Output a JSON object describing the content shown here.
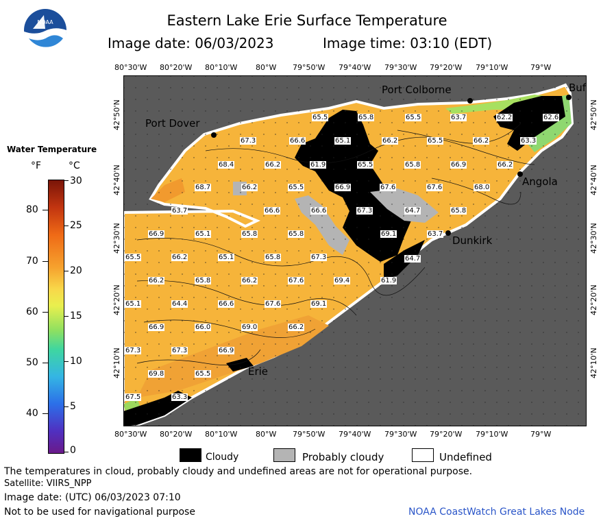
{
  "title": "Eastern Lake Erie Surface Temperature",
  "image_date_label": "Image date: 06/03/2023",
  "image_time_label": "Image time: 03:10 (EDT)",
  "logo_text": "NOAA",
  "legend": {
    "title": "Water Temperature",
    "unit_f": "°F",
    "unit_c": "°C",
    "f_ticks": [
      "80",
      "70",
      "60",
      "50",
      "40"
    ],
    "c_ticks": [
      "30",
      "25",
      "20",
      "15",
      "10",
      "5",
      "0"
    ]
  },
  "lon_labels": [
    "80°30'W",
    "80°20'W",
    "80°10'W",
    "80°W",
    "79°50'W",
    "79°40'W",
    "79°30'W",
    "79°20'W",
    "79°10'W",
    "79°W"
  ],
  "lat_labels": [
    "42°50'N",
    "42°40'N",
    "42°30'N",
    "42°20'N",
    "42°10'N"
  ],
  "cities": {
    "port_colborne": "Port Colborne",
    "buffalo": "Buf",
    "port_dover": "Port Dover",
    "angola": "Angola",
    "dunkirk": "Dunkirk",
    "erie": "Erie"
  },
  "temps": [
    "65.5",
    "65.8",
    "65.5",
    "63.7",
    "62.2",
    "62.6",
    "67.3",
    "66.6",
    "65.1",
    "66.2",
    "65.5",
    "66.2",
    "63.3",
    "68.4",
    "66.2",
    "61.9",
    "65.5",
    "65.8",
    "66.9",
    "66.2",
    "68.7",
    "66.2",
    "65.5",
    "66.9",
    "67.6",
    "67.6",
    "68.0",
    "63.7",
    "66.6",
    "66.6",
    "67.3",
    "64.7",
    "65.8",
    "66.9",
    "65.1",
    "65.8",
    "65.8",
    "69.1",
    "63.7",
    "65.5",
    "66.2",
    "65.1",
    "65.8",
    "67.3",
    "64.7",
    "66.2",
    "65.8",
    "66.2",
    "67.6",
    "69.4",
    "61.9",
    "65.1",
    "64.4",
    "66.6",
    "67.6",
    "69.1",
    "66.9",
    "66.0",
    "69.0",
    "66.2",
    "67.3",
    "67.3",
    "66.9",
    "69.8",
    "65.5",
    "67.5",
    "63.3"
  ],
  "legend_items": {
    "cloudy": "Cloudy",
    "probably_cloudy": "Probably cloudy",
    "undefined": "Undefined"
  },
  "footer": {
    "disclaimer": "The temperatures in cloud, probably cloudy and undefined areas are not for operational purpose.",
    "satellite": "Satellite: VIIRS_NPP",
    "utc_date": "Image date: (UTC) 06/03/2023  07:10",
    "nav_warning": "Not to be used for navigational purpose",
    "credit": "NOAA CoastWatch Great Lakes Node"
  },
  "colors": {
    "land": "#5a5a5a",
    "water_main": "#f6b43a",
    "water_warm": "#f19a2e",
    "cloud": "#000000",
    "probably_cloudy": "#b4b4b4",
    "undefined": "#ffffff",
    "credit": "#2a55c8"
  }
}
